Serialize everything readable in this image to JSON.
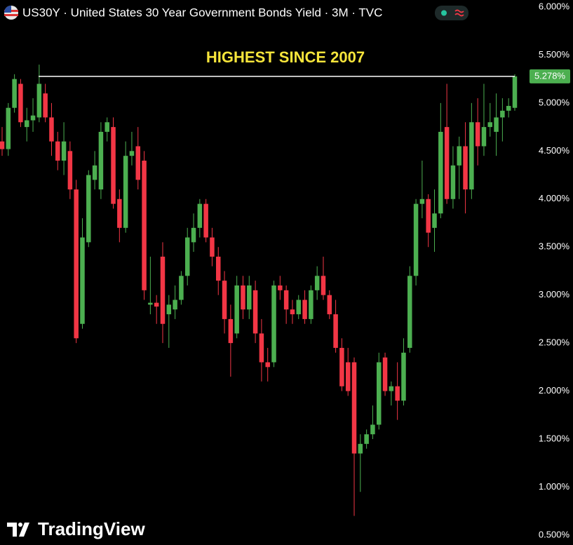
{
  "chart_data": {
    "type": "candlestick",
    "title": "US30Y · United States 30 Year Government Bonds Yield · 3M · TVC",
    "annotation": "HIGHEST SINCE 2007",
    "brand": "TradingView",
    "last_label": "5.278%",
    "up_color": "#4caf50",
    "down_color": "#f23645",
    "ylim": [
      0.397,
      6.073
    ],
    "yticks": [
      {
        "value": 0.5,
        "label": "0.500%"
      },
      {
        "value": 1,
        "label": "1.000%"
      },
      {
        "value": 1.5,
        "label": "1.500%"
      },
      {
        "value": 2,
        "label": "2.000%"
      },
      {
        "value": 2.5,
        "label": "2.500%"
      },
      {
        "value": 3,
        "label": "3.000%"
      },
      {
        "value": 3.5,
        "label": "3.500%"
      },
      {
        "value": 4,
        "label": "4.000%"
      },
      {
        "value": 4.5,
        "label": "4.500%"
      },
      {
        "value": 5,
        "label": "5.000%"
      },
      {
        "value": 5.5,
        "label": "5.500%"
      },
      {
        "value": 6,
        "label": "6.000%"
      }
    ],
    "open": [
      4.6,
      4.52,
      4.95,
      5.2,
      4.75,
      4.82,
      4.85,
      5.1,
      4.85,
      4.6,
      4.4,
      4.5,
      4.1,
      2.7,
      3.55,
      4.2,
      4.1,
      4.7,
      4.75,
      4.0,
      3.7,
      4.45,
      4.55,
      4.4,
      2.9,
      2.92,
      3.4,
      2.8,
      2.85,
      2.95,
      3.2,
      3.55,
      3.7,
      3.95,
      3.6,
      3.4,
      3.15,
      2.75,
      2.6,
      3.1,
      2.85,
      3.05,
      2.6,
      2.3,
      2.3,
      3.1,
      3.05,
      2.85,
      2.8,
      2.95,
      2.75,
      3.05,
      3.2,
      3.0,
      2.8,
      2.45,
      2.3,
      2.3,
      1.35,
      1.45,
      1.55,
      1.65,
      2.35,
      2.0,
      2.05,
      1.9,
      2.45,
      3.2,
      3.95,
      4.0,
      3.7,
      3.85,
      4.75,
      4.0,
      4.35,
      4.55,
      4.1,
      4.8,
      4.55,
      4.75,
      4.7,
      4.85,
      4.92,
      4.95
    ],
    "high": [
      4.75,
      5.0,
      5.3,
      5.25,
      4.95,
      5.05,
      5.4,
      5.2,
      5.0,
      4.7,
      4.8,
      4.6,
      4.2,
      3.8,
      4.3,
      4.5,
      4.8,
      4.85,
      4.85,
      4.1,
      4.6,
      4.7,
      4.75,
      4.5,
      3.4,
      3.0,
      3.55,
      3.0,
      3.1,
      3.25,
      3.7,
      3.85,
      4.0,
      4.0,
      3.7,
      3.5,
      3.25,
      2.9,
      3.2,
      3.2,
      3.2,
      3.15,
      2.75,
      2.45,
      3.15,
      3.2,
      3.1,
      2.95,
      3.0,
      3.05,
      3.1,
      3.3,
      3.4,
      3.05,
      2.95,
      2.55,
      2.45,
      2.35,
      1.55,
      1.6,
      1.85,
      2.4,
      2.4,
      2.1,
      2.3,
      2.55,
      3.3,
      4.0,
      4.4,
      4.05,
      4.1,
      5.0,
      5.2,
      4.55,
      4.65,
      4.8,
      5.0,
      5.05,
      5.2,
      5.0,
      5.1,
      5.05,
      5.05,
      5.3
    ],
    "low": [
      4.45,
      4.45,
      4.9,
      4.75,
      4.6,
      4.7,
      4.8,
      4.8,
      4.45,
      4.3,
      4.25,
      4.0,
      2.5,
      2.65,
      3.5,
      4.1,
      4.0,
      4.6,
      3.9,
      3.55,
      3.65,
      4.35,
      4.1,
      2.95,
      2.8,
      2.7,
      2.5,
      2.45,
      2.75,
      2.9,
      3.1,
      3.45,
      3.6,
      3.55,
      3.3,
      3.0,
      2.6,
      2.15,
      2.55,
      2.75,
      2.75,
      2.5,
      2.1,
      2.1,
      2.25,
      2.95,
      2.7,
      2.7,
      2.75,
      2.7,
      2.7,
      2.95,
      2.95,
      2.75,
      2.4,
      2.0,
      1.95,
      0.7,
      0.95,
      1.4,
      1.5,
      1.6,
      1.95,
      1.85,
      1.7,
      1.85,
      2.4,
      3.1,
      3.8,
      3.5,
      3.45,
      3.8,
      3.95,
      3.9,
      4.0,
      3.85,
      4.0,
      4.35,
      4.45,
      4.65,
      4.45,
      4.6,
      4.85,
      4.92
    ],
    "close": [
      4.52,
      4.95,
      5.25,
      4.8,
      4.82,
      4.87,
      5.2,
      4.85,
      4.6,
      4.4,
      4.6,
      4.1,
      2.55,
      3.6,
      4.25,
      4.35,
      4.7,
      4.8,
      3.95,
      3.7,
      4.45,
      4.5,
      4.2,
      3.05,
      2.92,
      2.88,
      2.7,
      2.9,
      2.95,
      3.2,
      3.6,
      3.7,
      3.95,
      3.6,
      3.4,
      3.15,
      2.75,
      2.5,
      3.1,
      2.85,
      3.1,
      2.6,
      2.3,
      2.25,
      3.1,
      3.05,
      2.85,
      2.8,
      2.95,
      2.75,
      3.05,
      3.2,
      3.0,
      2.8,
      2.45,
      2.05,
      2.0,
      1.35,
      1.45,
      1.55,
      1.65,
      2.3,
      2.0,
      2.05,
      1.9,
      2.4,
      3.2,
      3.95,
      4.0,
      3.65,
      3.85,
      4.7,
      4.0,
      4.35,
      4.55,
      4.1,
      4.8,
      4.55,
      4.75,
      4.8,
      4.85,
      4.92,
      4.97,
      5.278
    ]
  }
}
